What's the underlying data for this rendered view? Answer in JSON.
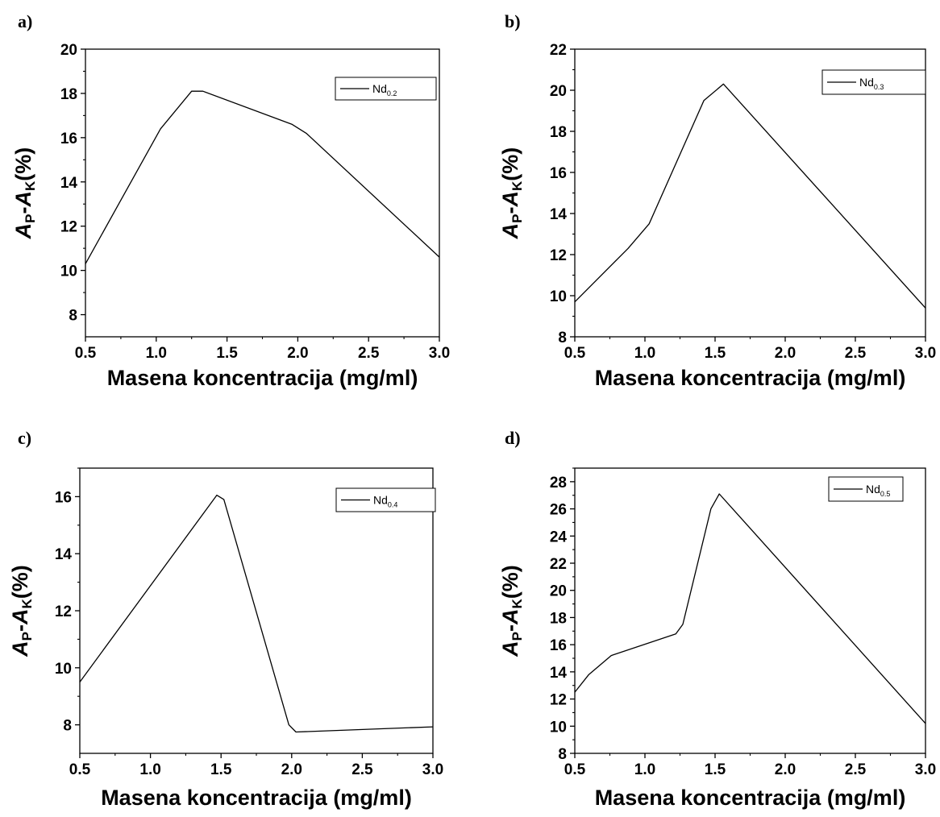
{
  "chart_data": [
    {
      "panel_label": "a)",
      "type": "line",
      "xlabel": "Masena koncentracija (mg/ml)",
      "ylabel": {
        "main1": "A",
        "sub1": "P",
        "dash": "-",
        "main2": "A",
        "sub2": "K",
        "unit": "(%)"
      },
      "xlim": [
        0.5,
        3.0
      ],
      "ylim": [
        7,
        20
      ],
      "xticks": [
        "0.5",
        "1.0",
        "1.5",
        "2.0",
        "2.5",
        "3.0"
      ],
      "yticks": [
        "8",
        "10",
        "12",
        "14",
        "16",
        "18",
        "20"
      ],
      "legend": {
        "position": "top-right",
        "base": "Nd",
        "sub": "0.2"
      },
      "series": [
        {
          "name": "Nd0.2",
          "color": "#000000",
          "x": [
            0.5,
            1.03,
            1.25,
            1.33,
            1.96,
            2.06,
            3.0
          ],
          "y": [
            10.3,
            16.4,
            18.1,
            18.1,
            16.6,
            16.2,
            10.6
          ]
        }
      ],
      "grid": false
    },
    {
      "panel_label": "b)",
      "type": "line",
      "xlabel": "Masena koncentracija (mg/ml)",
      "ylabel": {
        "main1": "A",
        "sub1": "P",
        "dash": "-",
        "main2": "A",
        "sub2": "K",
        "unit": "(%)"
      },
      "xlim": [
        0.5,
        3.0
      ],
      "ylim": [
        8,
        22
      ],
      "xticks": [
        "0.5",
        "1.0",
        "1.5",
        "2.0",
        "2.5",
        "3.0"
      ],
      "yticks": [
        "8",
        "10",
        "12",
        "14",
        "16",
        "18",
        "20",
        "22"
      ],
      "legend": {
        "position": "top-right",
        "base": "Nd",
        "sub": "0.3"
      },
      "series": [
        {
          "name": "Nd0.3",
          "color": "#000000",
          "x": [
            0.5,
            0.88,
            1.03,
            1.42,
            1.56,
            3.0
          ],
          "y": [
            9.7,
            12.3,
            13.5,
            19.5,
            20.3,
            9.4
          ]
        }
      ],
      "grid": false
    },
    {
      "panel_label": "c)",
      "type": "line",
      "xlabel": "Masena koncentracija (mg/ml)",
      "ylabel": {
        "main1": "A",
        "sub1": "P",
        "dash": "-",
        "main2": "A",
        "sub2": "K",
        "unit": "(%)"
      },
      "xlim": [
        0.5,
        3.0
      ],
      "ylim": [
        7,
        17
      ],
      "xticks": [
        "0.5",
        "1.0",
        "1.5",
        "2.0",
        "2.5",
        "3.0"
      ],
      "yticks": [
        "8",
        "10",
        "12",
        "14",
        "16"
      ],
      "legend": {
        "position": "top-right",
        "base": "Nd",
        "sub": "0.4"
      },
      "series": [
        {
          "name": "Nd0.4",
          "color": "#000000",
          "x": [
            0.5,
            1.47,
            1.52,
            1.98,
            2.03,
            3.0
          ],
          "y": [
            9.5,
            16.05,
            15.9,
            8.0,
            7.75,
            7.93
          ]
        }
      ],
      "grid": false
    },
    {
      "panel_label": "d)",
      "type": "line",
      "xlabel": "Masena koncentracija (mg/ml)",
      "ylabel": {
        "main1": "A",
        "sub1": "P",
        "dash": "-",
        "main2": "A",
        "sub2": "K",
        "unit": "(%)"
      },
      "xlim": [
        0.5,
        3.0
      ],
      "ylim": [
        8,
        29
      ],
      "xticks": [
        "0.5",
        "1.0",
        "1.5",
        "2.0",
        "2.5",
        "3.0"
      ],
      "yticks": [
        "8",
        "10",
        "12",
        "14",
        "16",
        "18",
        "20",
        "22",
        "24",
        "26",
        "28"
      ],
      "legend": {
        "position": "top-right",
        "base": "Nd",
        "sub": "0.5"
      },
      "series": [
        {
          "name": "Nd0.5",
          "color": "#000000",
          "x": [
            0.5,
            0.6,
            0.76,
            1.22,
            1.27,
            1.47,
            1.53,
            3.0
          ],
          "y": [
            12.5,
            13.8,
            15.2,
            16.8,
            17.5,
            26.0,
            27.1,
            10.2
          ]
        }
      ],
      "grid": false
    }
  ]
}
